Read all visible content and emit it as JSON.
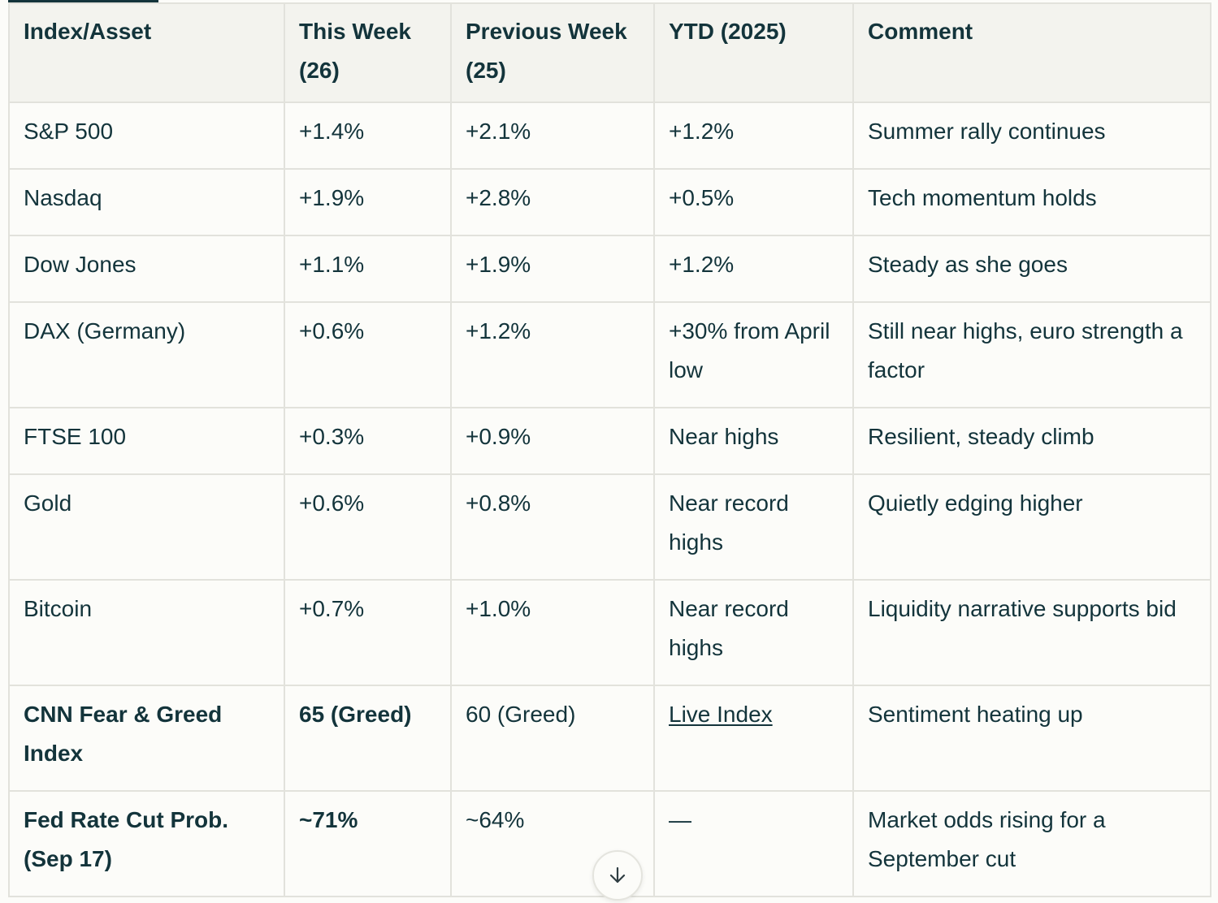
{
  "table": {
    "headers": [
      "Index/Asset",
      "This Week (26)",
      "Previous Week (25)",
      "YTD (2025)",
      "Comment"
    ],
    "rows": [
      {
        "asset": "S&P 500",
        "this_week": "+1.4%",
        "prev_week": "+2.1%",
        "ytd": "+1.2%",
        "comment": "Summer rally continues"
      },
      {
        "asset": "Nasdaq",
        "this_week": "+1.9%",
        "prev_week": "+2.8%",
        "ytd": "+0.5%",
        "comment": "Tech momentum holds"
      },
      {
        "asset": "Dow Jones",
        "this_week": "+1.1%",
        "prev_week": "+1.9%",
        "ytd": "+1.2%",
        "comment": "Steady as she goes"
      },
      {
        "asset": "DAX (Germany)",
        "this_week": "+0.6%",
        "prev_week": "+1.2%",
        "ytd": "+30% from April low",
        "comment": "Still near highs, euro strength a factor"
      },
      {
        "asset": "FTSE 100",
        "this_week": "+0.3%",
        "prev_week": "+0.9%",
        "ytd": "Near highs",
        "comment": "Resilient, steady climb"
      },
      {
        "asset": "Gold",
        "this_week": "+0.6%",
        "prev_week": "+0.8%",
        "ytd": "Near record highs",
        "comment": "Quietly edging higher"
      },
      {
        "asset": "Bitcoin",
        "this_week": "+0.7%",
        "prev_week": "+1.0%",
        "ytd": "Near record highs",
        "comment": "Liquidity narrative supports bid"
      },
      {
        "asset": "CNN Fear & Greed Index",
        "this_week": "65 (Greed)",
        "prev_week": "60 (Greed)",
        "ytd_link": "Live Index",
        "comment": "Sentiment heating up"
      },
      {
        "asset": "Fed Rate Cut Prob. (Sep 17)",
        "this_week": "~71%",
        "prev_week": "~64%",
        "ytd": "—",
        "comment": "Market odds rising for a September cut"
      }
    ]
  },
  "icons": {
    "scroll_down": "arrow-down-icon"
  },
  "colors": {
    "text": "#13343b",
    "header_bg": "#f3f3ee",
    "border": "#e2e2dc",
    "background": "#fcfcf9"
  }
}
